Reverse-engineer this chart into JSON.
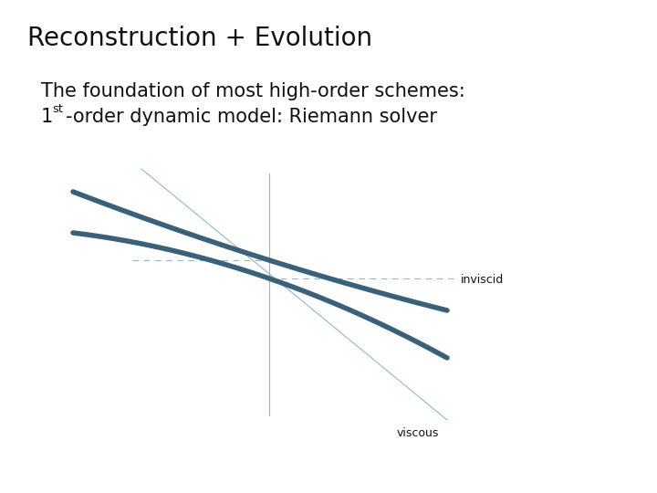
{
  "title": "Reconstruction + Evolution",
  "subtitle_line1": "The foundation of most high-order schemes:",
  "subtitle_line2_normal": "-order dynamic model: Riemann solver",
  "subtitle_line2_super": "st",
  "subtitle_line2_prefix": "1",
  "background_color": "#ffffff",
  "text_color": "#111111",
  "curve_color": "#3a607a",
  "thin_line_color": "#90b8c8",
  "dashed_color": "#90b8c8",
  "label_inviscid": "inviscid",
  "label_viscous": "viscous",
  "curve_linewidth": 4.0,
  "thin_linewidth": 0.8,
  "dash_linewidth": 0.8,
  "title_fontsize": 20,
  "body_fontsize": 15
}
